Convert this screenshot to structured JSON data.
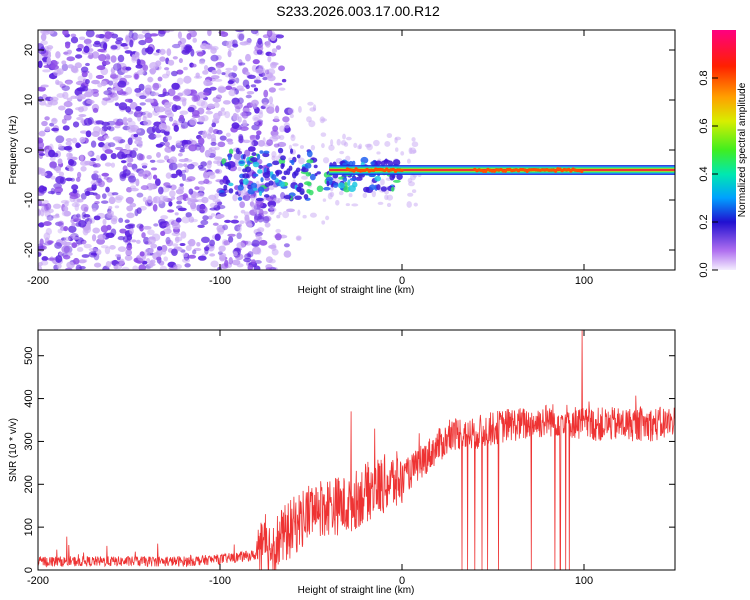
{
  "title": "S233.2026.003.17.00.R12",
  "colors": {
    "snr_line": "#ee3333",
    "spectrum_core": "#ee3333",
    "spectrum_mid": "#33dd66",
    "spectrum_low": "#5a20e0",
    "spectrum_faint": "#c8a8f4"
  },
  "chart_data": [
    {
      "type": "heatmap",
      "title": "S233.2026.003.17.00.R12",
      "xlabel": "Height of straight line (km)",
      "ylabel": "Frequency (Hz)",
      "xlim": [
        -200,
        150
      ],
      "ylim": [
        -24,
        24
      ],
      "x_ticks": [
        "-200",
        "-100",
        "0",
        "100"
      ],
      "y_ticks": [
        "20",
        "10",
        "0",
        "-10",
        "-20"
      ],
      "colorbar": {
        "label": "Normalized spectral amplitude",
        "range": [
          0,
          1
        ],
        "ticks": [
          "0.0",
          "0.2",
          "0.4",
          "0.6",
          "0.8"
        ],
        "colormap": "rainbow: white-violet, purple, blue, cyan, green, yellow, orange, red, magenta"
      },
      "features": {
        "noise_region_km": [
          -200,
          -70
        ],
        "signal_center_frequency_hz": -4,
        "signal_onset_km": -40,
        "strong_signal_segments_km": [
          [
            -30,
            0
          ],
          [
            40,
            100
          ]
        ]
      }
    },
    {
      "type": "line",
      "xlabel": "Height of straight line (km)",
      "ylabel": "SNR (10 * v/v)",
      "xlim": [
        -200,
        150
      ],
      "ylim": [
        0,
        560
      ],
      "x_ticks": [
        "-200",
        "-100",
        "0",
        "100"
      ],
      "y_ticks": [
        "0",
        "100",
        "200",
        "300",
        "400",
        "500"
      ],
      "series": [
        {
          "x": [
            -200,
            -180,
            -160,
            -140,
            -120,
            -100,
            -90,
            -80,
            -70,
            -60,
            -50,
            -40,
            -30,
            -20,
            -10,
            0,
            10,
            20,
            30,
            40,
            50,
            60,
            70,
            80,
            90,
            100,
            110,
            120,
            130,
            140,
            150
          ],
          "values": [
            20,
            20,
            20,
            20,
            20,
            25,
            30,
            35,
            60,
            100,
            140,
            150,
            150,
            180,
            200,
            210,
            250,
            290,
            320,
            320,
            330,
            340,
            340,
            350,
            350,
            340,
            340,
            340,
            340,
            340,
            345
          ]
        }
      ],
      "spikes": [
        {
          "x": -28,
          "y": 370
        },
        {
          "x": -15,
          "y": 330
        },
        {
          "x": 99,
          "y": 560
        }
      ],
      "dropouts_x": [
        33,
        36,
        40,
        44,
        47,
        53,
        71,
        84,
        87,
        90,
        92
      ]
    }
  ]
}
